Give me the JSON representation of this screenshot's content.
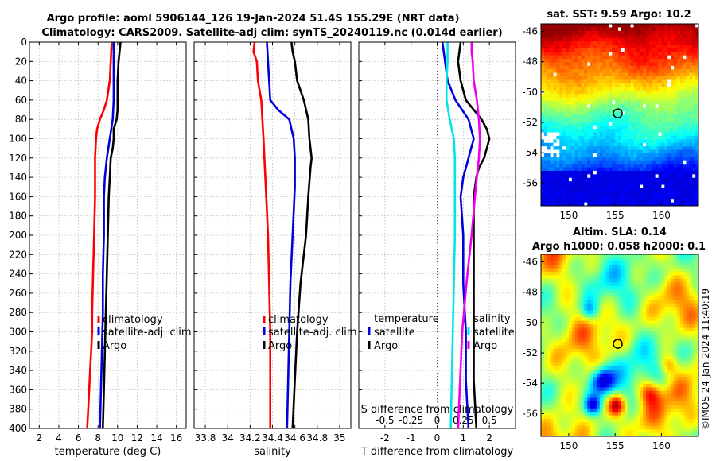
{
  "chart_data": {
    "type": "line",
    "title_line1": "Argo profile: aoml 5906144_126 19-Jan-2024 51.4S 155.29E (NRT data)",
    "title_line2": "Climatology: CARS2009. Satellite-adj clim: synTS_20240119.nc (0.014d earlier)",
    "credit": "©IMOS 24-Jan-2024 11:40:19",
    "depth_axis": {
      "ylim": [
        0,
        400
      ],
      "ticks": [
        0,
        20,
        40,
        60,
        80,
        100,
        120,
        140,
        160,
        180,
        200,
        220,
        240,
        260,
        280,
        300,
        320,
        340,
        360,
        380,
        400
      ],
      "reversed": true
    },
    "legend_profiles": [
      "climatology",
      "satellite-adj. clim",
      "Argo"
    ],
    "legend_diff_temp": [
      "temperature",
      "satellite",
      "Argo"
    ],
    "legend_diff_sal": [
      "salinity",
      "satellite",
      "Argo"
    ],
    "colors": {
      "climatology": "#ff0000",
      "satellite_adj": "#0000dd",
      "argo": "#000000",
      "sal_satellite": "#00e5e5",
      "sal_argo": "#ee00ee",
      "grid": "#c8c8c8"
    },
    "temperature_panel": {
      "xlabel": "temperature (deg C)",
      "xlim": [
        1,
        17
      ],
      "xticks": [
        2,
        4,
        6,
        8,
        10,
        12,
        14,
        16
      ],
      "xtick_labels": [
        "2",
        "4",
        "6",
        "8",
        "10",
        "12",
        "14",
        "16"
      ],
      "series": [
        {
          "name": "climatology",
          "depth": [
            0,
            20,
            40,
            60,
            70,
            80,
            90,
            100,
            120,
            140,
            160,
            200,
            240,
            280,
            300,
            320,
            340,
            360,
            380,
            400
          ],
          "values": [
            9.4,
            9.3,
            9.2,
            8.9,
            8.6,
            8.2,
            7.9,
            7.8,
            7.7,
            7.7,
            7.7,
            7.6,
            7.5,
            7.4,
            7.4,
            7.3,
            7.2,
            7.1,
            7.0,
            6.9
          ]
        },
        {
          "name": "satellite-adj. clim",
          "depth": [
            0,
            20,
            40,
            60,
            80,
            100,
            120,
            140,
            160,
            200,
            240,
            280,
            320,
            360,
            400
          ],
          "values": [
            9.6,
            9.6,
            9.6,
            9.6,
            9.5,
            9.2,
            8.9,
            8.7,
            8.6,
            8.6,
            8.5,
            8.5,
            8.4,
            8.3,
            8.2
          ]
        },
        {
          "name": "Argo",
          "depth": [
            0,
            10,
            20,
            40,
            60,
            70,
            80,
            90,
            100,
            110,
            120,
            140,
            160,
            200,
            240,
            280,
            320,
            360,
            400
          ],
          "values": [
            10.3,
            10.2,
            10.1,
            10.0,
            10.0,
            10.0,
            9.9,
            9.6,
            9.6,
            9.5,
            9.3,
            9.2,
            9.1,
            9.0,
            8.9,
            8.8,
            8.7,
            8.6,
            8.5
          ]
        }
      ]
    },
    "salinity_panel": {
      "xlabel": "salinity",
      "xlim": [
        33.7,
        35.1
      ],
      "xticks": [
        33.8,
        34.0,
        34.2,
        34.4,
        34.6,
        34.8,
        35.0
      ],
      "xtick_labels": [
        "33.8",
        "34",
        "34.2",
        "34.4",
        "34.6",
        "34.8",
        "35"
      ],
      "series": [
        {
          "name": "climatology",
          "depth": [
            0,
            10,
            20,
            40,
            60,
            100,
            150,
            200,
            250,
            300,
            350,
            400
          ],
          "values": [
            34.24,
            34.23,
            34.26,
            34.27,
            34.3,
            34.32,
            34.34,
            34.36,
            34.37,
            34.38,
            34.38,
            34.38
          ]
        },
        {
          "name": "satellite-adj. clim",
          "depth": [
            0,
            20,
            40,
            60,
            70,
            80,
            100,
            120,
            150,
            200,
            250,
            300,
            350,
            400
          ],
          "values": [
            34.35,
            34.36,
            34.37,
            34.38,
            34.45,
            34.55,
            34.59,
            34.6,
            34.6,
            34.58,
            34.56,
            34.55,
            34.54,
            34.53
          ]
        },
        {
          "name": "Argo",
          "depth": [
            0,
            10,
            20,
            40,
            50,
            60,
            70,
            80,
            100,
            110,
            120,
            130,
            160,
            200,
            250,
            300,
            350,
            400
          ],
          "values": [
            34.57,
            34.58,
            34.6,
            34.62,
            34.65,
            34.68,
            34.7,
            34.72,
            34.73,
            34.74,
            34.75,
            34.74,
            34.72,
            34.7,
            34.65,
            34.62,
            34.6,
            34.58
          ]
        }
      ]
    },
    "difference_panel": {
      "xlabel": "T difference from climatology",
      "xlim": [
        -3.0,
        3.0
      ],
      "xticks": [
        -2,
        -1,
        0,
        1,
        2
      ],
      "xtick_labels": [
        "-2",
        "-1",
        "0",
        "1",
        "2"
      ],
      "top_axis_label": "S difference from climatology",
      "top_ticks": [
        -0.5,
        -0.25,
        0,
        0.25,
        0.5
      ],
      "top_tick_labels": [
        "-0.5",
        "-0.25",
        "0",
        "0.25",
        "0.5"
      ],
      "top_xlim": [
        -0.75,
        0.75
      ],
      "series": [
        {
          "name": "temperature satellite",
          "axis": "T",
          "depth": [
            0,
            20,
            40,
            60,
            80,
            100,
            120,
            140,
            160,
            200,
            250,
            300,
            350,
            400
          ],
          "values": [
            0.2,
            0.3,
            0.4,
            0.7,
            1.2,
            1.4,
            1.2,
            1.0,
            0.9,
            1.0,
            1.0,
            1.1,
            1.1,
            1.2
          ]
        },
        {
          "name": "temperature Argo",
          "axis": "T",
          "depth": [
            0,
            20,
            40,
            60,
            80,
            90,
            100,
            110,
            120,
            130,
            140,
            160,
            200,
            250,
            300,
            350,
            400
          ],
          "values": [
            0.9,
            0.8,
            0.9,
            1.1,
            1.7,
            1.9,
            2.0,
            1.9,
            1.8,
            1.6,
            1.5,
            1.4,
            1.4,
            1.4,
            1.4,
            1.4,
            1.5
          ]
        },
        {
          "name": "salinity satellite",
          "axis": "S",
          "depth": [
            0,
            20,
            40,
            60,
            80,
            100,
            120,
            150,
            200,
            250,
            300,
            350,
            400
          ],
          "values": [
            0.1,
            0.1,
            0.09,
            0.09,
            0.12,
            0.16,
            0.17,
            0.17,
            0.17,
            0.16,
            0.15,
            0.14,
            0.13
          ]
        },
        {
          "name": "salinity Argo",
          "axis": "S",
          "depth": [
            0,
            10,
            20,
            40,
            60,
            80,
            100,
            120,
            150,
            200,
            250,
            300,
            350,
            400
          ],
          "values": [
            0.33,
            0.33,
            0.34,
            0.35,
            0.38,
            0.4,
            0.41,
            0.4,
            0.37,
            0.33,
            0.28,
            0.24,
            0.22,
            0.2
          ]
        }
      ]
    },
    "sst_map": {
      "title": "sat. SST: 9.59 Argo: 10.2",
      "lon_range": [
        147,
        164
      ],
      "lat_range": [
        -57.5,
        -45.5
      ],
      "xticks": [
        150,
        155,
        160
      ],
      "xtick_labels": [
        "150",
        "155",
        "160"
      ],
      "yticks": [
        -46,
        -48,
        -50,
        -52,
        -54,
        -56
      ],
      "ytick_labels": [
        "-46",
        "-48",
        "-50",
        "-52",
        "-54",
        "-56"
      ],
      "float_lon": 155.29,
      "float_lat": -51.4
    },
    "sla_map": {
      "title_line1": "Altim. SLA: 0.14",
      "title_line2": "Argo h1000: 0.058 h2000: 0.1",
      "lon_range": [
        147,
        164
      ],
      "lat_range": [
        -57.5,
        -45.5
      ],
      "xticks": [
        150,
        155,
        160
      ],
      "xtick_labels": [
        "150",
        "155",
        "160"
      ],
      "yticks": [
        -46,
        -48,
        -50,
        -52,
        -54,
        -56
      ],
      "ytick_labels": [
        "-46",
        "-48",
        "-50",
        "-52",
        "-54",
        "-56"
      ],
      "float_lon": 155.29,
      "float_lat": -51.4
    }
  }
}
